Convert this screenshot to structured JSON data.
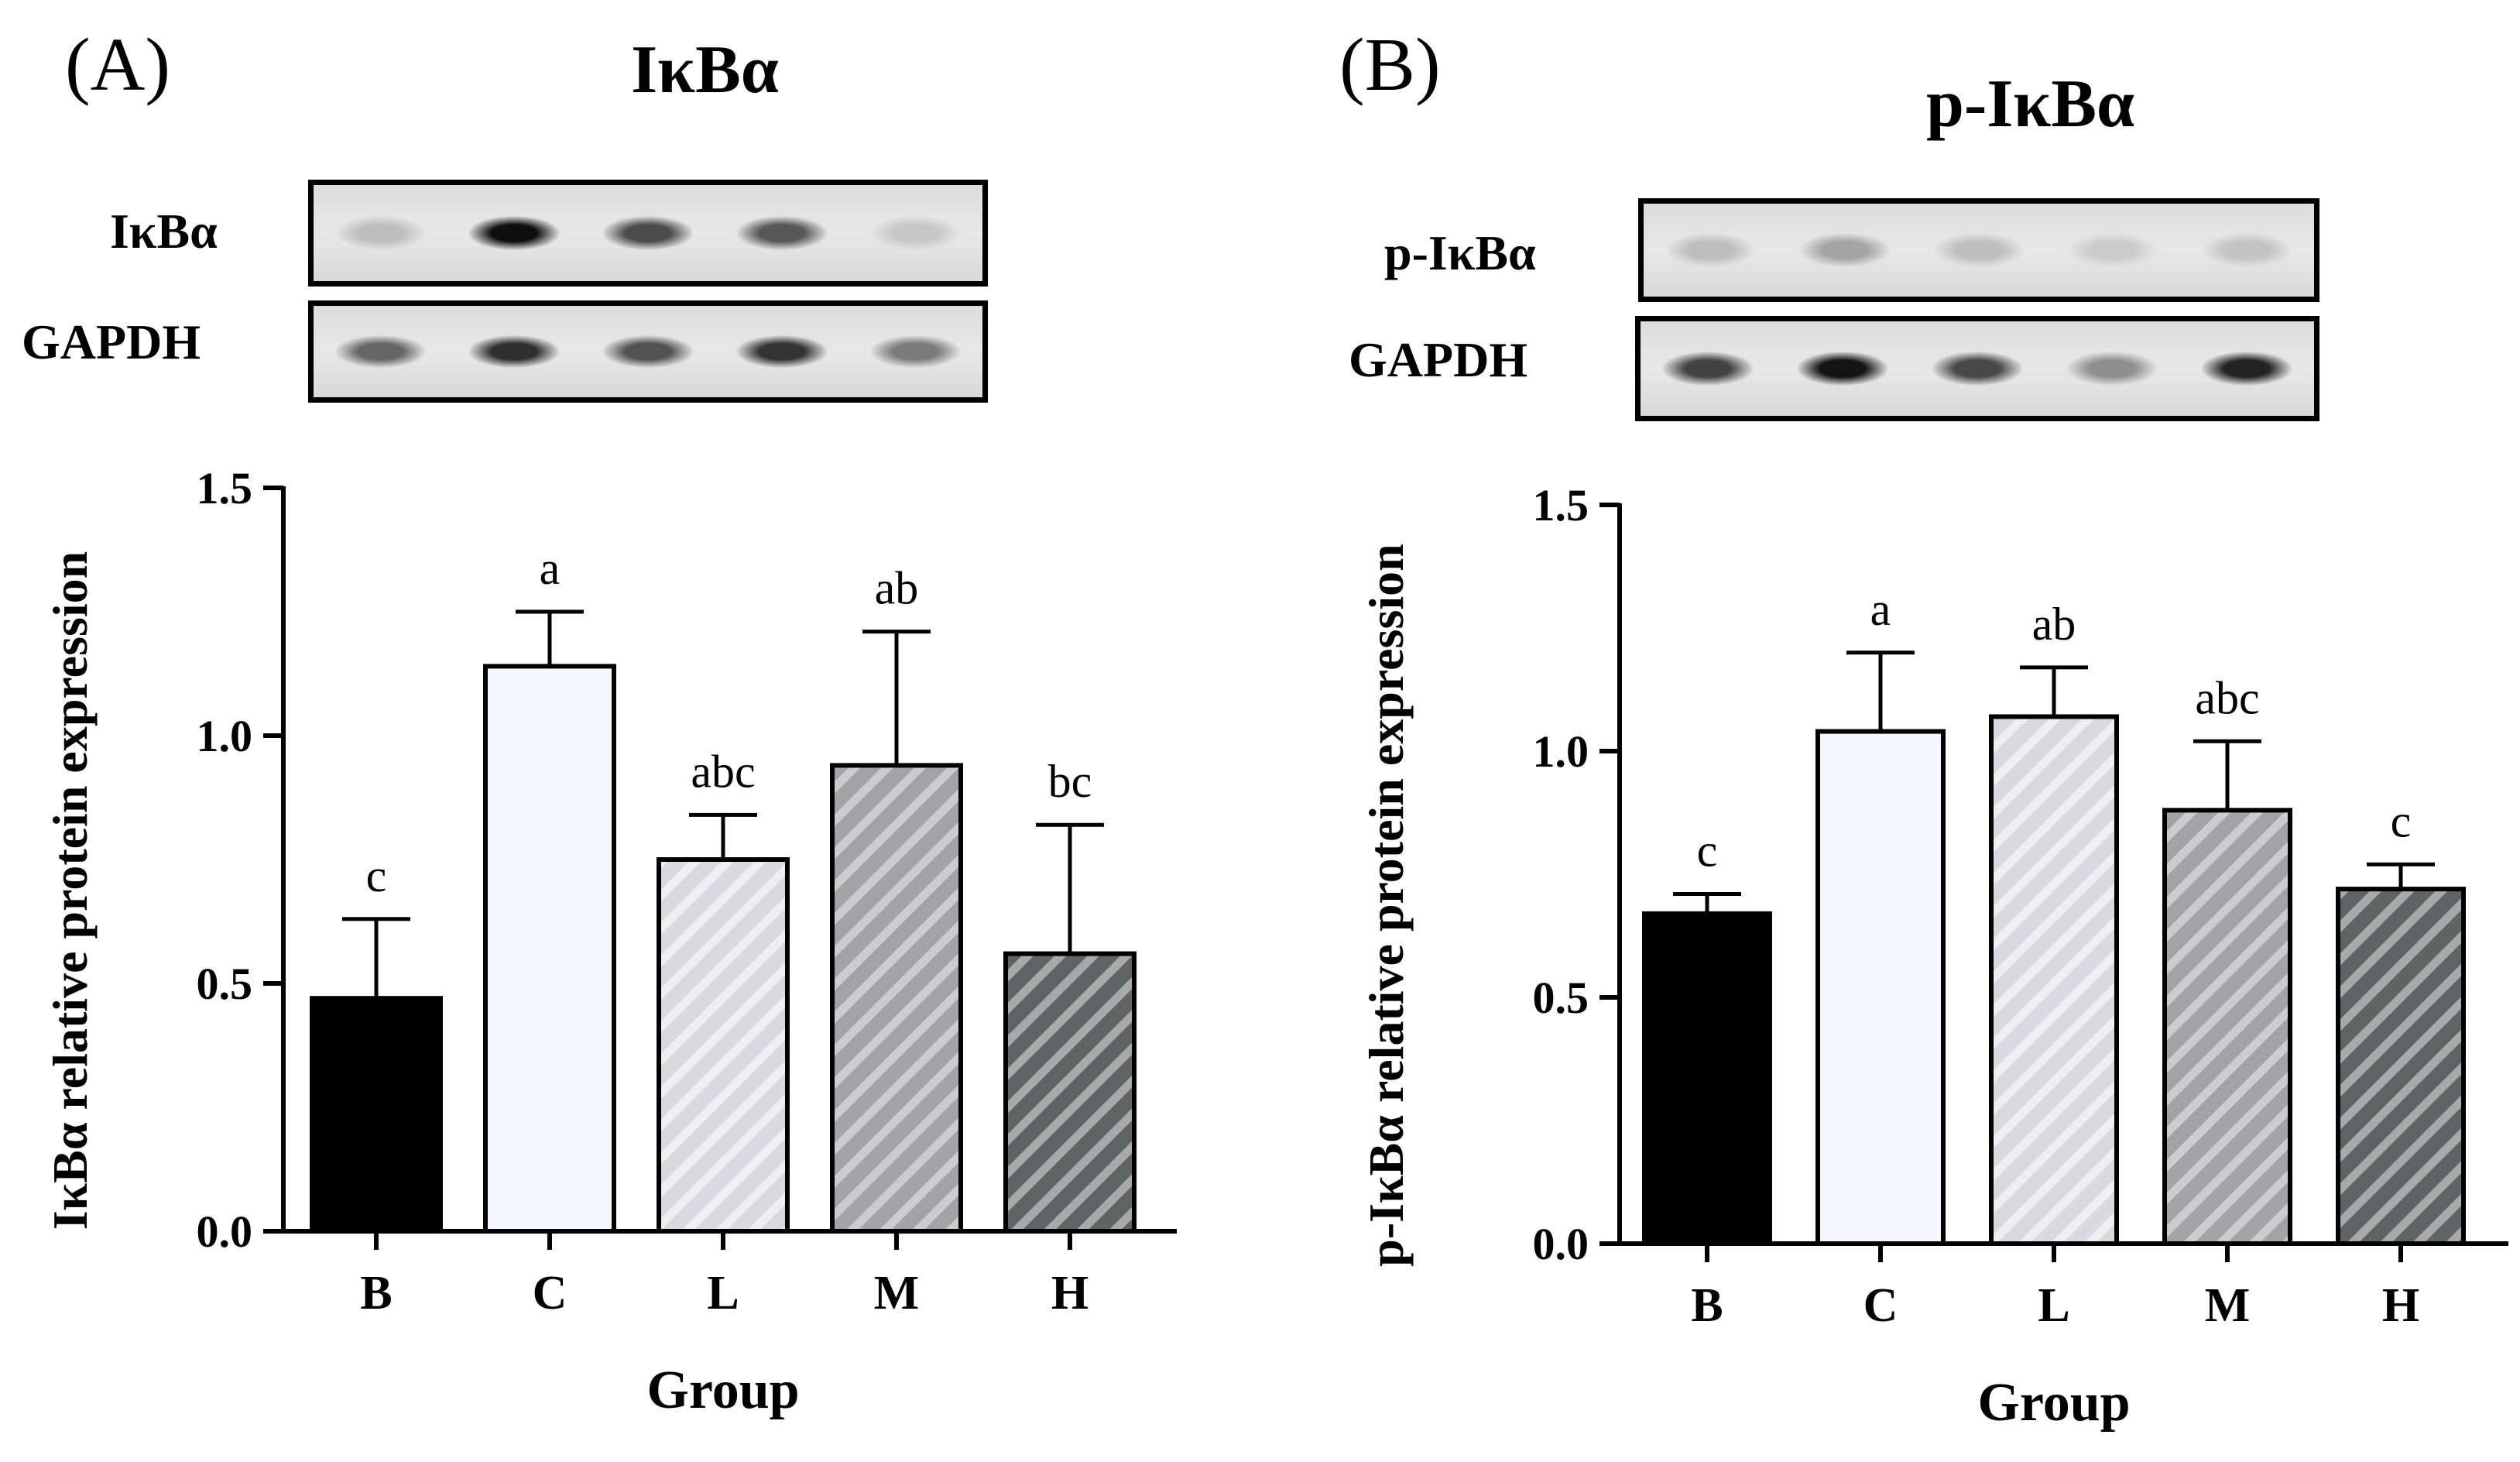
{
  "panels": [
    {
      "panel_label": "(A)",
      "title": "IκBα",
      "blot": {
        "labels": [
          "IκBα",
          "GAPDH"
        ],
        "band_intensity": [
          [
            0.12,
            0.98,
            0.68,
            0.62,
            0.08
          ],
          [
            0.55,
            0.82,
            0.65,
            0.8,
            0.45
          ]
        ]
      }
    },
    {
      "panel_label": "(B)",
      "title": "p-IκBα",
      "blot": {
        "labels": [
          "p-IκBα",
          "GAPDH"
        ],
        "band_intensity": [
          [
            0.12,
            0.25,
            0.12,
            0.06,
            0.1
          ],
          [
            0.72,
            0.95,
            0.7,
            0.35,
            0.88
          ]
        ]
      }
    }
  ],
  "chart_data": [
    {
      "type": "bar",
      "categories": [
        "B",
        "C",
        "L",
        "M",
        "H"
      ],
      "values": [
        0.47,
        1.14,
        0.75,
        0.94,
        0.56
      ],
      "errors": [
        0.16,
        0.11,
        0.09,
        0.27,
        0.26
      ],
      "significance": [
        "c",
        "a",
        "abc",
        "ab",
        "bc"
      ],
      "xlabel": "Group",
      "ylabel": "IκBα relative protein expression",
      "ylim": [
        0,
        1.5
      ],
      "yticks": [
        "0.0",
        "0.5",
        "1.0",
        "1.5"
      ],
      "bar_fill": [
        "#000000",
        "#f4f7ff",
        "#d9d9df",
        "#a2a2a7",
        "#5e6463"
      ],
      "bar_hatch": [
        false,
        false,
        true,
        true,
        true
      ]
    },
    {
      "type": "bar",
      "categories": [
        "B",
        "C",
        "L",
        "M",
        "H"
      ],
      "values": [
        0.67,
        1.04,
        1.07,
        0.88,
        0.72
      ],
      "errors": [
        0.04,
        0.16,
        0.1,
        0.14,
        0.05
      ],
      "significance": [
        "c",
        "a",
        "ab",
        "abc",
        "c"
      ],
      "xlabel": "Group",
      "ylabel": "p-IκBα relative protein expression",
      "ylim": [
        0,
        1.5
      ],
      "yticks": [
        "0.0",
        "0.5",
        "1.0",
        "1.5"
      ],
      "bar_fill": [
        "#000000",
        "#f4f7ff",
        "#d9d9df",
        "#a2a2a7",
        "#5e6463"
      ],
      "bar_hatch": [
        false,
        false,
        true,
        true,
        true
      ]
    }
  ]
}
